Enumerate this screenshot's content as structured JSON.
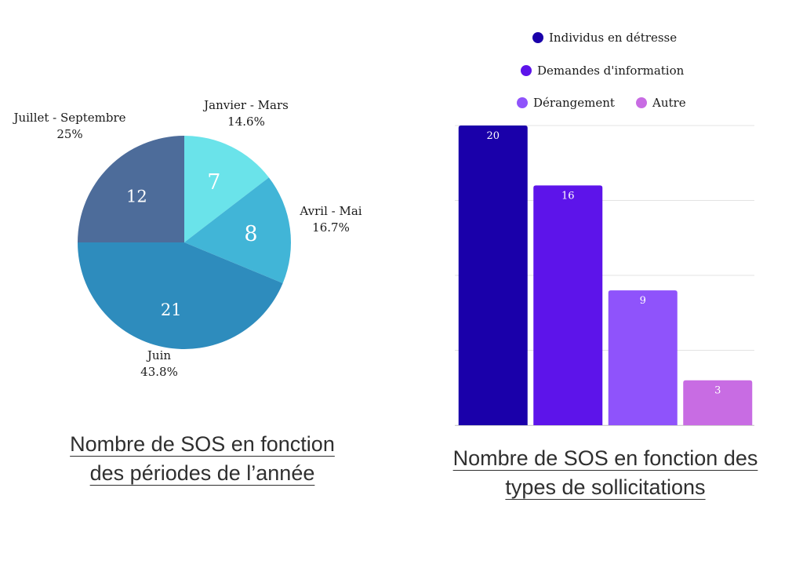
{
  "captions": {
    "pie": {
      "line1": "Nombre de SOS en fonction",
      "line2": "des périodes de l’année "
    },
    "bar": {
      "line1": "Nombre de SOS en fonction des",
      "line2": "types de sollicitations "
    }
  },
  "chart_data": [
    {
      "type": "pie",
      "title": "Nombre de SOS en fonction des périodes de l’année",
      "slices": [
        {
          "label": "Janvier - Mars",
          "value": 7,
          "percent": "14.6%",
          "color": "#6ae3ea"
        },
        {
          "label": "Avril - Mai",
          "value": 8,
          "percent": "16.7%",
          "color": "#41b5d7"
        },
        {
          "label": "Juin",
          "value": 21,
          "percent": "43.8%",
          "color": "#2e8cbd"
        },
        {
          "label": "Juillet - Septembre",
          "value": 12,
          "percent": "25%",
          "color": "#4d6c9a"
        }
      ]
    },
    {
      "type": "bar",
      "title": "Nombre de SOS en fonction des types de sollicitations",
      "categories": [
        "Individus en détresse",
        "Demandes d'information",
        "Dérangement",
        "Autre"
      ],
      "values": [
        20,
        16,
        9,
        3
      ],
      "colors": [
        "#1a00aa",
        "#5d14ea",
        "#8f53fb",
        "#c86ce3"
      ],
      "ylim": [
        0,
        20
      ],
      "grid": true,
      "legend": "top"
    }
  ]
}
